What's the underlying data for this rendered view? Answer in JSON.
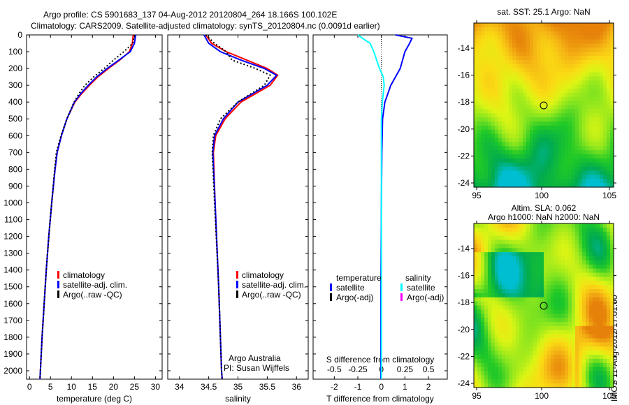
{
  "title": {
    "line1": "Argo profile: CS 5901683_137 04-Aug-2012 20120804_264 18.166S 100.102E",
    "line2": "Climatology: CARS2009. Satellite-adjusted climatology: synTS_20120804.nc (0.0091d earlier)"
  },
  "colors": {
    "climatology": "#ff0000",
    "satellite": "#0000ff",
    "argo": "#000000",
    "sal_sat": "#00ffff",
    "sal_argo": "#ff00ff"
  },
  "chart_data": [
    {
      "type": "line",
      "name": "temperature",
      "xlabel": "temperature (deg C)",
      "ylabel": "depth",
      "xlim": [
        -0.7,
        31.6
      ],
      "ylim": [
        2050,
        0
      ],
      "xticks": [
        0,
        5,
        10,
        15,
        20,
        25,
        30
      ],
      "yticks": [
        0,
        100,
        200,
        300,
        400,
        500,
        600,
        700,
        800,
        900,
        1000,
        1100,
        1200,
        1300,
        1400,
        1500,
        1600,
        1700,
        1800,
        1900,
        2000
      ],
      "legend": [
        "climatology",
        "satellite-adj. clim.",
        "Argo(..raw -QC)"
      ],
      "depth": [
        0,
        50,
        100,
        150,
        200,
        250,
        300,
        350,
        400,
        500,
        600,
        700,
        800,
        1000,
        1200,
        1400,
        1600,
        1800,
        2000,
        2050
      ],
      "series": [
        {
          "name": "climatology",
          "values": [
            24.7,
            24.5,
            23.8,
            21.5,
            18.8,
            16.3,
            14.3,
            12.4,
            10.8,
            8.9,
            7.6,
            6.6,
            6.1,
            5.3,
            4.6,
            4.0,
            3.5,
            3.0,
            2.6,
            2.5
          ]
        },
        {
          "name": "satellite-adj. clim.",
          "values": [
            25.3,
            25.0,
            24.0,
            21.3,
            18.5,
            16.0,
            14.0,
            12.2,
            10.7,
            8.9,
            7.6,
            6.6,
            6.1,
            5.3,
            4.6,
            4.0,
            3.5,
            3.0,
            2.6,
            2.5
          ]
        },
        {
          "name": "Argo(..raw -QC)",
          "values": [
            25.0,
            24.6,
            22.5,
            20.0,
            17.8,
            15.3,
            13.2,
            11.8,
            10.6,
            8.9,
            7.5,
            6.4,
            6.0,
            5.3,
            4.6,
            4.0,
            3.5,
            3.0,
            2.6,
            2.5
          ]
        }
      ]
    },
    {
      "type": "line",
      "name": "salinity",
      "xlabel": "salinity",
      "ylabel": "depth",
      "xlim": [
        33.8,
        36.2
      ],
      "ylim": [
        2050,
        0
      ],
      "xticks": [
        34,
        34.5,
        35,
        35.5,
        36
      ],
      "legend": [
        "climatology",
        "satellite-adj. clim.",
        "Argo(..raw -QC)"
      ],
      "notes": [
        "Argo Australia",
        "PI: Susan Wijffels"
      ],
      "depth": [
        0,
        50,
        100,
        150,
        200,
        240,
        300,
        400,
        500,
        600,
        700,
        1000,
        1500,
        2000,
        2050
      ],
      "series": [
        {
          "name": "climatology",
          "values": [
            34.45,
            34.55,
            34.8,
            35.15,
            35.5,
            35.68,
            35.55,
            35.05,
            34.78,
            34.62,
            34.58,
            34.61,
            34.67,
            34.72,
            34.73
          ]
        },
        {
          "name": "satellite-adj. clim.",
          "values": [
            34.42,
            34.5,
            34.7,
            35.05,
            35.45,
            35.66,
            35.5,
            35.0,
            34.75,
            34.6,
            34.57,
            34.61,
            34.67,
            34.72,
            34.73
          ]
        },
        {
          "name": "Argo(..raw -QC)",
          "values": [
            34.45,
            34.6,
            34.8,
            34.9,
            35.3,
            35.55,
            35.45,
            35.0,
            34.7,
            34.58,
            34.56,
            34.6,
            34.67,
            34.72,
            34.73
          ]
        }
      ]
    },
    {
      "type": "line",
      "name": "difference",
      "xlabel": "T difference from climatology",
      "x2label": "S difference from climatology",
      "xlim": [
        -2.9,
        2.8
      ],
      "ylim": [
        2050,
        0
      ],
      "xticks": [
        -2,
        -1,
        0,
        1,
        2
      ],
      "x2ticks": [
        -0.5,
        -0.25,
        0,
        0.25,
        0.5
      ],
      "legend_t_title": "temperature",
      "legend_s_title": "salinity",
      "legend": [
        "satellite",
        "Argo(-adj)",
        "satellite",
        "Argo(-adj)"
      ],
      "depth": [
        0,
        20,
        50,
        100,
        150,
        200,
        250,
        300,
        400,
        500,
        700,
        1000,
        1500,
        2000,
        2050
      ],
      "series": [
        {
          "name": "T satellite",
          "values": [
            0.6,
            1.3,
            1.2,
            1.0,
            0.9,
            0.8,
            0.6,
            0.4,
            0.15,
            0.05,
            0.02,
            0.0,
            -0.02,
            -0.02,
            -0.02
          ]
        },
        {
          "name": "S satellite",
          "values": [
            -0.25,
            -0.2,
            -0.12,
            -0.08,
            -0.05,
            -0.02,
            0.02,
            0.03,
            0.01,
            0.0,
            0.0,
            0.0,
            0.0,
            0.0,
            0.0
          ]
        }
      ]
    }
  ],
  "maps": [
    {
      "title1": "sat. SST: 25.1  Argo: NaN",
      "title2": "",
      "xticks": [
        "95",
        "100",
        "105"
      ],
      "yticks": [
        "-14",
        "-16",
        "-18",
        "-20",
        "-22",
        "-24"
      ],
      "field": "sst"
    },
    {
      "title1": "Altim. SLA: 0.062",
      "title2": "Argo h1000: NaN h2000: NaN",
      "xticks": [
        "95",
        "100",
        "105"
      ],
      "yticks": [
        "-14",
        "-16",
        "-18",
        "-20",
        "-22",
        "-24"
      ],
      "field": "sla"
    }
  ],
  "stamp": "IMOS 11-Aug-2012 17:01:00"
}
